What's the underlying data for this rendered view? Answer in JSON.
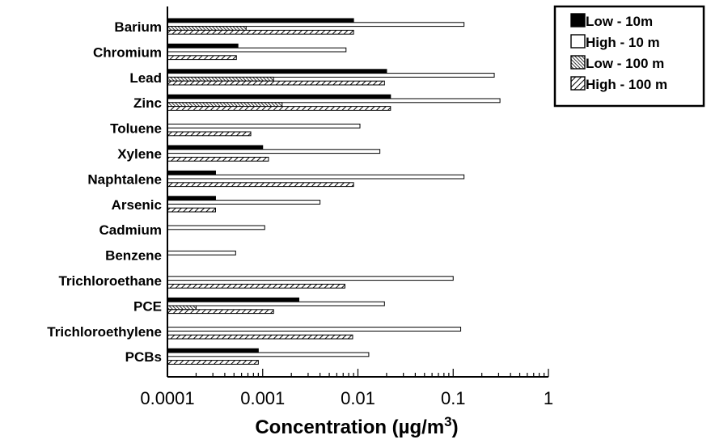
{
  "chart_data": {
    "type": "bar",
    "orientation": "horizontal",
    "x_scale": "log",
    "xlim": [
      0.0001,
      1
    ],
    "xlabel": "Concentration (µg/m",
    "xlabel_superscript": "3",
    "xlabel_suffix": ")",
    "x_tick_labels": [
      "0.0001",
      "0.001",
      "0.01",
      "0.1",
      "1"
    ],
    "x_ticks": [
      0.0001,
      0.001,
      0.01,
      0.1,
      1
    ],
    "grid": false,
    "legend_position": "top-right",
    "categories": [
      "Barium",
      "Chromium",
      "Lead",
      "Zinc",
      "Toluene",
      "Xylene",
      "Naphtalene",
      "Arsenic",
      "Cadmium",
      "Benzene",
      "Trichloroethane",
      "PCE",
      "Trichloroethylene",
      "PCBs"
    ],
    "series": [
      {
        "name": "Low - 10m",
        "fill": "solid",
        "color": "#000000",
        "values": [
          0.009,
          0.00055,
          0.02,
          0.022,
          null,
          0.001,
          0.00032,
          0.00032,
          null,
          null,
          null,
          0.0024,
          null,
          0.0009
        ]
      },
      {
        "name": "High - 10 m",
        "fill": "empty",
        "color": "#ffffff",
        "values": [
          0.13,
          0.0075,
          0.27,
          0.31,
          0.0105,
          0.017,
          0.13,
          0.004,
          0.00105,
          0.00052,
          0.1,
          0.019,
          0.12,
          0.013
        ]
      },
      {
        "name": "Low - 100 m",
        "fill": "dense-hatch",
        "color": "#000000",
        "values": [
          0.00067,
          null,
          0.0013,
          0.0016,
          null,
          null,
          null,
          null,
          null,
          null,
          null,
          0.0002,
          null,
          null
        ]
      },
      {
        "name": "High - 100 m",
        "fill": "hatch",
        "color": "#000000",
        "values": [
          0.009,
          0.00053,
          0.019,
          0.022,
          0.00075,
          0.00115,
          0.009,
          0.00032,
          null,
          null,
          0.0073,
          0.0013,
          0.0088,
          0.0009
        ]
      }
    ]
  }
}
